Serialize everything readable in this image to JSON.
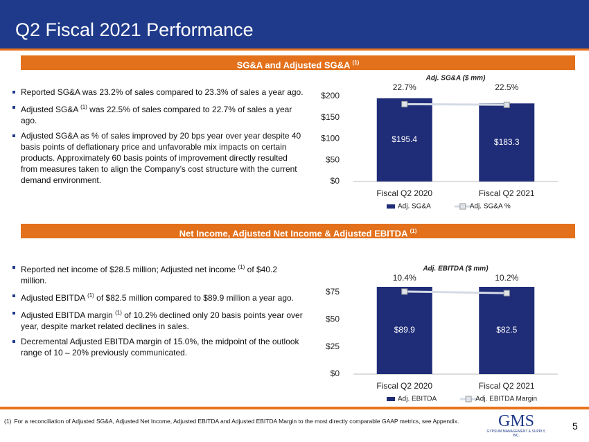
{
  "title": "Q2 Fiscal 2021 Performance",
  "sections": [
    {
      "heading": "SG&A and Adjusted SG&A",
      "heading_sup": "(1)",
      "bullets": [
        {
          "before": "Reported SG&A was 23.2% of sales compared to 23.3% of sales a year ago."
        },
        {
          "before": "Adjusted SG&A",
          "sup": "(1)",
          "after": " was 22.5% of sales compared to 22.7% of sales a year ago."
        },
        {
          "before": "Adjusted SG&A as % of sales improved by 20 bps year over year despite 40 basis points of deflationary price and unfavorable mix impacts on certain products. Approximately 60 basis points of improvement directly resulted from measures taken to align the Company’s cost structure with the current demand environment."
        }
      ]
    },
    {
      "heading": "Net Income, Adjusted Net Income & Adjusted EBITDA",
      "heading_sup": "(1)",
      "bullets": [
        {
          "before": "Reported net income of $28.5 million; Adjusted net income",
          "sup": "(1)",
          "after": " of $40.2 million."
        },
        {
          "before": "Adjusted EBITDA",
          "sup": "(1)",
          "after": " of $82.5 million compared to $89.9 million a year ago."
        },
        {
          "before": "Adjusted EBITDA margin",
          "sup": "(1)",
          "after": " of 10.2% declined only 20 basis points year over year, despite market related declines in sales."
        },
        {
          "before": "Decremental Adjusted EBITDA margin of 15.0%, the midpoint of the outlook range of 10 – 20% previously communicated."
        }
      ]
    }
  ],
  "chart_data": [
    {
      "type": "bar",
      "title": "Adj. SG&A ($ mm)",
      "categories": [
        "Fiscal Q2 2020",
        "Fiscal Q2 2021"
      ],
      "series": [
        {
          "name": "Adj. SG&A",
          "type": "bar",
          "color": "#1f2c77",
          "values": [
            195.4,
            183.3
          ],
          "value_labels": [
            "$195.4",
            "$183.3"
          ]
        },
        {
          "name": "Adj. SG&A %",
          "type": "line",
          "axis": "y2",
          "color": "#d5dbe5",
          "values": [
            22.7,
            22.5
          ],
          "value_labels": [
            "22.7%",
            "22.5%"
          ]
        }
      ],
      "ylim": [
        0,
        200
      ],
      "yticks": [
        {
          "value": 0,
          "label": "$0"
        },
        {
          "value": 50,
          "label": "$50"
        },
        {
          "value": 100,
          "label": "$100"
        },
        {
          "value": 150,
          "label": "$150"
        },
        {
          "value": 200,
          "label": "$200"
        }
      ],
      "y2lim": [
        0,
        25
      ],
      "legend": "bottom"
    },
    {
      "type": "bar",
      "title": "Adj. EBITDA ($ mm)",
      "categories": [
        "Fiscal Q2 2020",
        "Fiscal Q2 2021"
      ],
      "series": [
        {
          "name": "Adj. EBITDA",
          "type": "bar",
          "color": "#1f2c77",
          "values": [
            89.9,
            82.5
          ],
          "value_labels": [
            "$89.9",
            "$82.5"
          ]
        },
        {
          "name": "Adj. EBITDA Margin",
          "type": "line",
          "axis": "y2",
          "color": "#d5dbe5",
          "values": [
            10.4,
            10.2
          ],
          "value_labels": [
            "10.4%",
            "10.2%"
          ]
        }
      ],
      "ylim": [
        0,
        80
      ],
      "yticks": [
        {
          "value": 0,
          "label": "$0"
        },
        {
          "value": 25,
          "label": "$25"
        },
        {
          "value": 50,
          "label": "$50"
        },
        {
          "value": 75,
          "label": "$75"
        }
      ],
      "y2lim": [
        0,
        11
      ],
      "legend": "bottom"
    }
  ],
  "footnote": {
    "marker": "(1)",
    "text": "For a reconciliation of Adjusted SG&A, Adjusted Net Income, Adjusted EBITDA and Adjusted EBITDA Margin to the most directly comparable GAAP metrics, see Appendix."
  },
  "logo": {
    "name": "GMS",
    "tagline": "GYPSUM MANAGEMENT & SUPPLY, INC."
  },
  "page_number": "5"
}
